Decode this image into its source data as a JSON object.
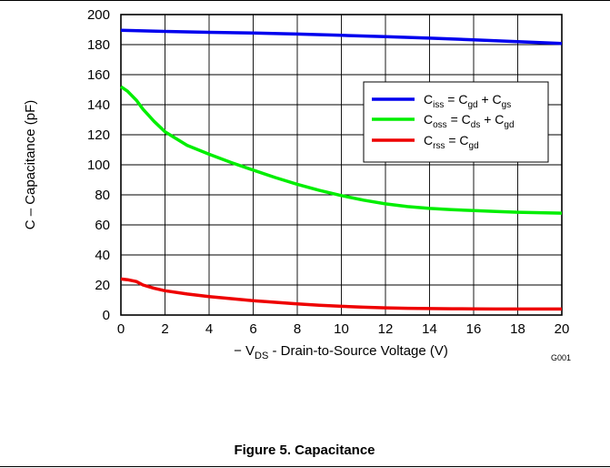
{
  "figure": {
    "caption": "Figure 5. Capacitance",
    "code": "G001"
  },
  "chart_data": {
    "type": "line",
    "xlabel": "− V_DS - Drain-to-Source Voltage (V)",
    "ylabel": "C – Capacitance (pF)",
    "xlim": [
      0,
      20
    ],
    "ylim": [
      0,
      200
    ],
    "xticks": [
      0,
      2,
      4,
      6,
      8,
      10,
      12,
      14,
      16,
      18,
      20
    ],
    "yticks": [
      0,
      20,
      40,
      60,
      80,
      100,
      120,
      140,
      160,
      180,
      200
    ],
    "grid": true,
    "legend_position": "top-right",
    "series": [
      {
        "name": "Ciss = Cgd + Cgs",
        "color": "#0000ee",
        "x": [
          0,
          2,
          4,
          6,
          8,
          10,
          12,
          14,
          16,
          18,
          20
        ],
        "y": [
          189.5,
          188.8,
          188.2,
          187.7,
          187.0,
          186.2,
          185.3,
          184.3,
          183.2,
          182.0,
          180.7
        ]
      },
      {
        "name": "Coss = Cds + Cgd",
        "color": "#00ee00",
        "x": [
          0,
          0.3,
          0.7,
          1.0,
          1.5,
          2,
          3,
          4,
          5,
          6,
          7,
          8,
          9,
          10,
          11,
          12,
          13,
          14,
          15,
          16,
          17,
          18,
          19,
          20
        ],
        "y": [
          152,
          149,
          143,
          137,
          129,
          122,
          113,
          107,
          101.5,
          96.5,
          91.5,
          87,
          83,
          79.5,
          76.5,
          74,
          72.2,
          71,
          70.2,
          69.5,
          68.9,
          68.4,
          68.1,
          67.8
        ]
      },
      {
        "name": "Crss = Cgd",
        "color": "#ee0000",
        "x": [
          0,
          0.3,
          0.7,
          1.0,
          1.5,
          2,
          3,
          4,
          5,
          6,
          7,
          8,
          9,
          10,
          11,
          12,
          13,
          14,
          15,
          16,
          17,
          18,
          19,
          20
        ],
        "y": [
          24,
          23.5,
          22.3,
          20.0,
          17.8,
          16.2,
          14.0,
          12.3,
          10.9,
          9.6,
          8.5,
          7.4,
          6.5,
          5.8,
          5.2,
          4.8,
          4.5,
          4.3,
          4.2,
          4.1,
          4.0,
          4.0,
          4.0,
          4.0
        ]
      }
    ]
  },
  "legend_rich": [
    [
      {
        "t": "C"
      },
      {
        "t": "iss",
        "sub": true
      },
      {
        "t": " = C"
      },
      {
        "t": "gd",
        "sub": true
      },
      {
        "t": " + C"
      },
      {
        "t": "gs",
        "sub": true
      }
    ],
    [
      {
        "t": "C"
      },
      {
        "t": "oss",
        "sub": true
      },
      {
        "t": " = C"
      },
      {
        "t": "ds",
        "sub": true
      },
      {
        "t": " + C"
      },
      {
        "t": "gd",
        "sub": true
      }
    ],
    [
      {
        "t": "C"
      },
      {
        "t": "rss",
        "sub": true
      },
      {
        "t": " =  C"
      },
      {
        "t": "gd",
        "sub": true
      }
    ]
  ],
  "xlabel_rich": [
    {
      "t": "− V"
    },
    {
      "t": "DS",
      "sub": true
    },
    {
      "t": " - Drain-to-Source Voltage (V)"
    }
  ]
}
